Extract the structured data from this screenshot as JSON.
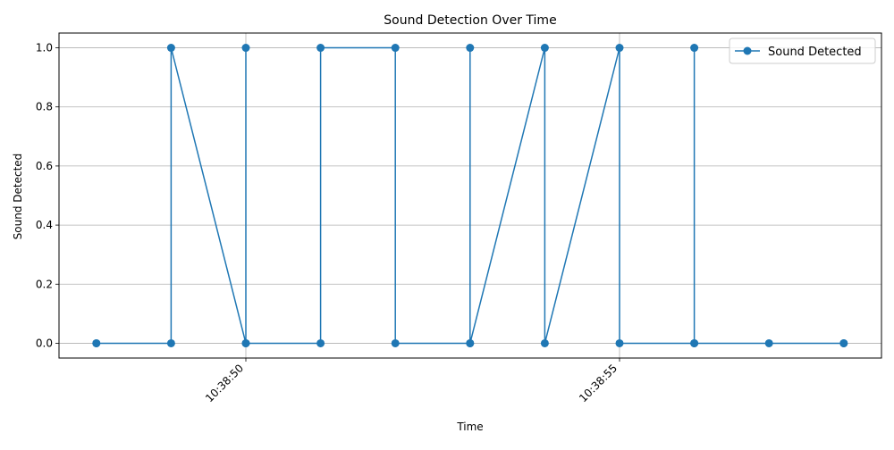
{
  "chart_data": {
    "type": "line",
    "title": "Sound Detection Over Time",
    "xlabel": "Time",
    "ylabel": "Sound Detected",
    "x_tick_labels": [
      "10:38:50",
      "10:38:55"
    ],
    "y_tick_labels": [
      "0.0",
      "0.2",
      "0.4",
      "0.6",
      "0.8",
      "1.0"
    ],
    "ylim": [
      -0.05,
      1.05
    ],
    "grid": true,
    "legend_position": "top-right",
    "series": [
      {
        "name": "Sound Detected",
        "color": "#1f77b4",
        "marker": "circle",
        "points": [
          {
            "t": "10:38:48",
            "v": 0
          },
          {
            "t": "10:38:48",
            "v": 0
          },
          {
            "t": "10:38:49",
            "v": 0
          },
          {
            "t": "10:38:49",
            "v": 1
          },
          {
            "t": "10:38:50",
            "v": 0
          },
          {
            "t": "10:38:50",
            "v": 1
          },
          {
            "t": "10:38:50",
            "v": 0
          },
          {
            "t": "10:38:51",
            "v": 0
          },
          {
            "t": "10:38:51",
            "v": 1
          },
          {
            "t": "10:38:52",
            "v": 1
          },
          {
            "t": "10:38:52",
            "v": 0
          },
          {
            "t": "10:38:53",
            "v": 0
          },
          {
            "t": "10:38:53",
            "v": 1
          },
          {
            "t": "10:38:53",
            "v": 0
          },
          {
            "t": "10:38:54",
            "v": 1
          },
          {
            "t": "10:38:54",
            "v": 0
          },
          {
            "t": "10:38:55",
            "v": 1
          },
          {
            "t": "10:38:55",
            "v": 0
          },
          {
            "t": "10:38:56",
            "v": 0
          },
          {
            "t": "10:38:56",
            "v": 1
          },
          {
            "t": "10:38:56",
            "v": 0
          },
          {
            "t": "10:38:57",
            "v": 0
          },
          {
            "t": "10:38:58",
            "v": 0
          },
          {
            "t": "10:38:58",
            "v": 0
          }
        ]
      }
    ]
  }
}
